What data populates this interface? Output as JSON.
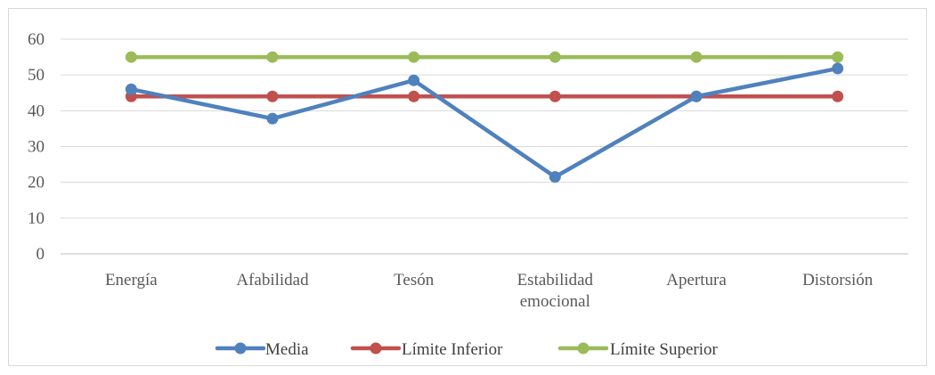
{
  "chart_data": {
    "type": "line",
    "title": "",
    "xlabel": "",
    "ylabel": "",
    "ylim": [
      0,
      60
    ],
    "yticks": [
      "0",
      "10",
      "20",
      "30",
      "40",
      "50",
      "60"
    ],
    "categories": [
      [
        "Energía"
      ],
      [
        "Afabilidad"
      ],
      [
        "Tesón"
      ],
      [
        "Estabilidad",
        "emocional"
      ],
      [
        "Apertura"
      ],
      [
        "Distorsión"
      ]
    ],
    "series": [
      {
        "name": "Media",
        "color": "#4f81bd",
        "values": [
          46,
          37.8,
          48.5,
          21.5,
          44,
          51.8
        ]
      },
      {
        "name": "Límite Inferior",
        "color": "#c0504d",
        "values": [
          44,
          44,
          44,
          44,
          44,
          44
        ]
      },
      {
        "name": "Límite Superior",
        "color": "#9bbb59",
        "values": [
          55,
          55,
          55,
          55,
          55,
          55
        ]
      }
    ],
    "grid": true,
    "legend_position": "bottom"
  }
}
